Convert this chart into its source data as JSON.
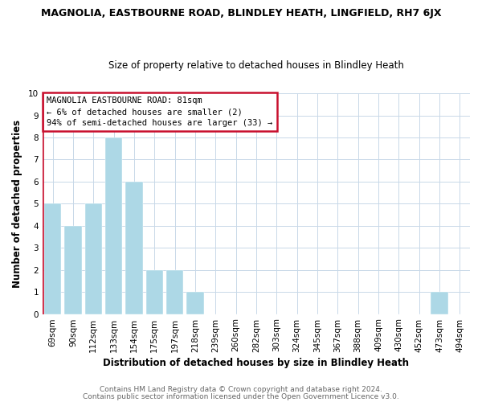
{
  "title": "MAGNOLIA, EASTBOURNE ROAD, BLINDLEY HEATH, LINGFIELD, RH7 6JX",
  "subtitle": "Size of property relative to detached houses in Blindley Heath",
  "xlabel": "Distribution of detached houses by size in Blindley Heath",
  "ylabel": "Number of detached properties",
  "categories": [
    "69sqm",
    "90sqm",
    "112sqm",
    "133sqm",
    "154sqm",
    "175sqm",
    "197sqm",
    "218sqm",
    "239sqm",
    "260sqm",
    "282sqm",
    "303sqm",
    "324sqm",
    "345sqm",
    "367sqm",
    "388sqm",
    "409sqm",
    "430sqm",
    "452sqm",
    "473sqm",
    "494sqm"
  ],
  "values": [
    5,
    4,
    5,
    8,
    6,
    2,
    2,
    1,
    0,
    0,
    0,
    0,
    0,
    0,
    0,
    0,
    0,
    0,
    0,
    1,
    0
  ],
  "bar_color": "#add8e6",
  "highlight_color": "#c8102e",
  "ylim": [
    0,
    10
  ],
  "yticks": [
    0,
    1,
    2,
    3,
    4,
    5,
    6,
    7,
    8,
    9,
    10
  ],
  "annotation_title": "MAGNOLIA EASTBOURNE ROAD: 81sqm",
  "annotation_line1": "← 6% of detached houses are smaller (2)",
  "annotation_line2": "94% of semi-detached houses are larger (33) →",
  "footer1": "Contains HM Land Registry data © Crown copyright and database right 2024.",
  "footer2": "Contains public sector information licensed under the Open Government Licence v3.0.",
  "background_color": "#ffffff",
  "grid_color": "#c8d8e8",
  "vline_x": -0.5,
  "title_fontsize": 9,
  "subtitle_fontsize": 8.5,
  "axis_label_fontsize": 8.5,
  "tick_fontsize": 7.5,
  "annotation_fontsize": 7.5,
  "footer_fontsize": 6.5
}
